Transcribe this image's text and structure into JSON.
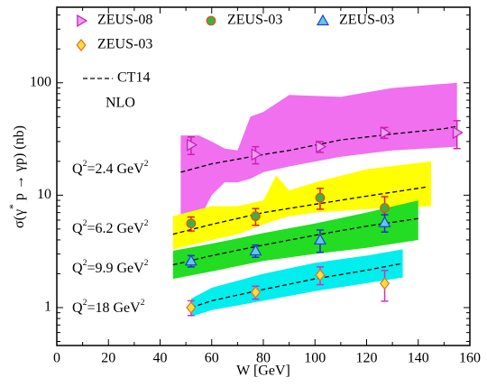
{
  "chart_data": {
    "type": "scatter",
    "x_label": "W [GeV]",
    "y_label_parts": [
      "σ(γ",
      "*",
      " p → γp) (nb)"
    ],
    "xlim": [
      0,
      160
    ],
    "xticks": [
      0,
      20,
      40,
      60,
      80,
      100,
      120,
      140,
      160
    ],
    "xminorticks": [
      10,
      30,
      50,
      70,
      90,
      110,
      130,
      150
    ],
    "ylim": [
      0.46,
      470
    ],
    "log_y": true,
    "yticks": [
      1,
      10,
      100
    ],
    "yminorticks": [
      0.5,
      0.6,
      0.7,
      0.8,
      0.9,
      2,
      3,
      4,
      5,
      6,
      7,
      8,
      9,
      20,
      30,
      40,
      50,
      60,
      70,
      80,
      90,
      200,
      300,
      400
    ],
    "series": [
      {
        "name": "ZEUS-08",
        "marker": "triangle-right",
        "color": "#e8a0e8",
        "edgecolor": "#c020c0",
        "errorcolor": "#d020b0",
        "x": [
          52,
          77,
          102,
          127,
          155
        ],
        "values": [
          28,
          23,
          27,
          36,
          36
        ],
        "errors": [
          5,
          4,
          3,
          4,
          10
        ]
      },
      {
        "name": "ZEUS-03",
        "marker": "circle",
        "color": "#40b040",
        "edgecolor": "#e05020",
        "errorcolor": "#e02020",
        "x": [
          52,
          77,
          102,
          127
        ],
        "values": [
          5.6,
          6.5,
          9.5,
          7.7
        ],
        "errors": [
          0.8,
          1.1,
          2,
          2
        ]
      },
      {
        "name": "ZEUS-03",
        "marker": "triangle-up",
        "color": "#60c8f0",
        "edgecolor": "#2040d0",
        "errorcolor": "#2030d0",
        "x": [
          52,
          77,
          102,
          127
        ],
        "values": [
          2.6,
          3.2,
          4.0,
          5.7
        ],
        "errors": [
          0.3,
          0.4,
          0.9,
          1.0
        ]
      },
      {
        "name": "ZEUS-03",
        "marker": "diamond",
        "color": "#f8e040",
        "edgecolor": "#e07020",
        "errorcolor": "#d030c0",
        "x": [
          52,
          77,
          102,
          127
        ],
        "values": [
          1.0,
          1.37,
          1.95,
          1.64
        ],
        "errors": [
          0.15,
          0.18,
          0.35,
          0.5
        ]
      }
    ],
    "bands": [
      {
        "color": "#f070f0",
        "x": [
          48,
          55,
          60,
          65,
          70,
          75,
          80,
          90,
          110,
          130,
          155
        ],
        "lower": [
          4,
          6,
          10,
          13,
          13,
          14,
          16,
          18,
          22,
          25,
          27
        ],
        "upper": [
          34,
          34,
          30,
          26,
          25,
          50,
          55,
          78,
          75,
          90,
          100
        ]
      },
      {
        "color": "#ffff00",
        "x": [
          45,
          60,
          70,
          80,
          85,
          90,
          100,
          120,
          145
        ],
        "lower": [
          3.3,
          4,
          4.5,
          5.5,
          6,
          6.5,
          7,
          7.5,
          8
        ],
        "upper": [
          6.5,
          8,
          8,
          9,
          15,
          11,
          13,
          17,
          20
        ]
      },
      {
        "color": "#22dd22",
        "x": [
          45,
          60,
          80,
          100,
          120,
          140
        ],
        "lower": [
          1.8,
          2.1,
          2.6,
          3.0,
          3.4,
          4.0
        ],
        "upper": [
          3.2,
          3.7,
          4.6,
          5.6,
          7,
          9
        ]
      },
      {
        "color": "#00eeee",
        "x": [
          52,
          60,
          80,
          100,
          120,
          134
        ],
        "lower": [
          0.83,
          0.95,
          1.15,
          1.4,
          1.65,
          1.85
        ],
        "upper": [
          1.2,
          1.5,
          2.0,
          2.5,
          2.9,
          3.3
        ]
      }
    ],
    "theory": {
      "name": "CT14",
      "note": "NLO",
      "note_color": "#ff0000",
      "color": "#000000",
      "curves": [
        {
          "x": [
            48,
            60,
            80,
            90,
            110,
            130,
            150,
            155
          ],
          "values": [
            16,
            19,
            23,
            25,
            31,
            35,
            39,
            41
          ]
        },
        {
          "x": [
            45,
            60,
            80,
            100,
            120,
            143
          ],
          "values": [
            4.5,
            5.5,
            7,
            8.3,
            9.8,
            11.8
          ]
        },
        {
          "x": [
            45,
            60,
            80,
            100,
            120,
            140
          ],
          "values": [
            2.4,
            2.9,
            3.6,
            4.4,
            5.3,
            6.2
          ]
        },
        {
          "x": [
            52,
            60,
            80,
            100,
            120,
            133
          ],
          "values": [
            1.0,
            1.15,
            1.45,
            1.8,
            2.15,
            2.45
          ]
        }
      ]
    },
    "annotations": [
      {
        "parts": [
          "Q",
          "2",
          "=2.4 GeV",
          "2"
        ]
      },
      {
        "parts": [
          "Q",
          "2",
          "=6.2 GeV",
          "2"
        ]
      },
      {
        "parts": [
          "Q",
          "2",
          "=9.9 GeV",
          "2"
        ]
      },
      {
        "parts": [
          "Q",
          "2",
          "=18  GeV",
          "2"
        ]
      }
    ]
  }
}
